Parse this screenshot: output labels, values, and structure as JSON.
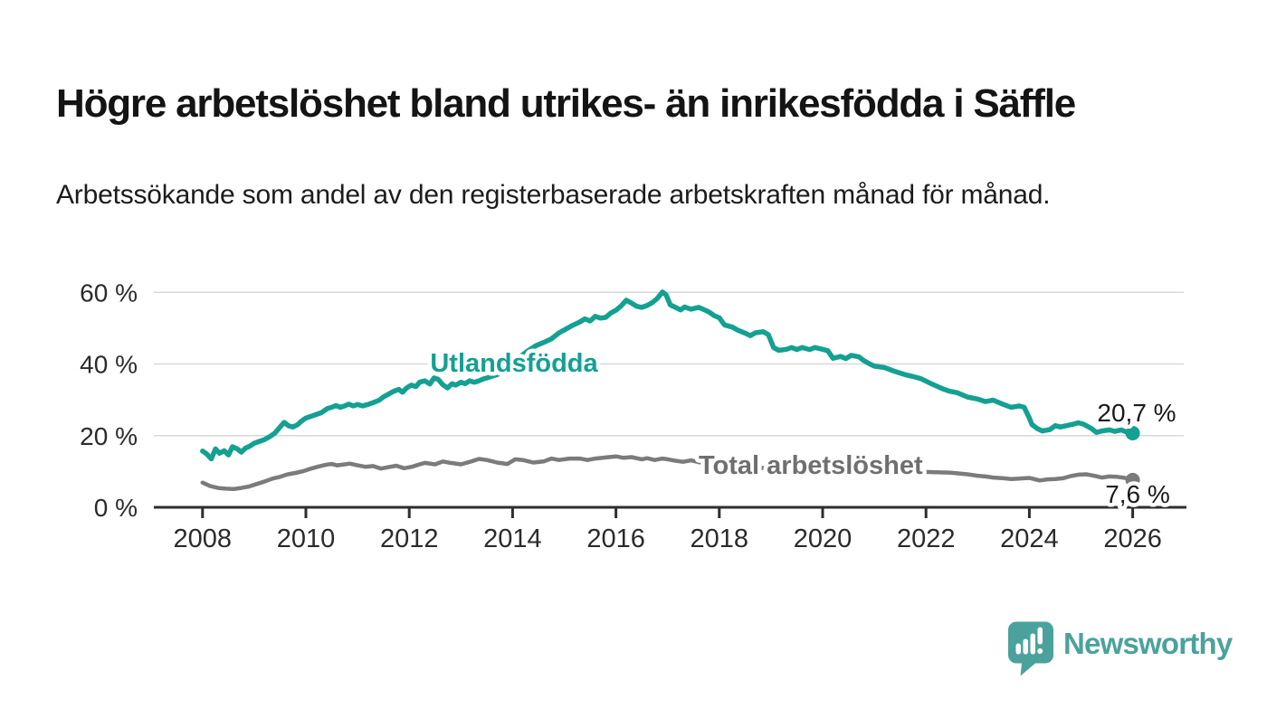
{
  "header": {
    "title": "Högre arbetslöshet bland utrikes- än inrikesfödda i Säffle",
    "subtitle": "Arbetssökande som andel av den registerbaserade arbetskraften månad för månad."
  },
  "footer": {
    "brand": "Newsworthy",
    "logo_icon": "newsworthy-speech-bubble-bar-chart-icon",
    "brand_color": "#4ba29d"
  },
  "chart_data": {
    "type": "line",
    "title": "Högre arbetslöshet bland utrikes- än inrikesfödda i Säffle",
    "subtitle": "Arbetssökande som andel av den registerbaserade arbetskraften månad för månad.",
    "grid": "horizontal",
    "legend": "inline-labels",
    "colors": {
      "grid": "#d8d8d8",
      "axis": "#2e2e2e",
      "tick_label": "#2b2b2b",
      "value_label": "#1a1a1a"
    },
    "x_axis": {
      "tick_years": [
        2008,
        2010,
        2012,
        2014,
        2016,
        2018,
        2020,
        2022,
        2024,
        2026
      ],
      "tick_labels": [
        "2008",
        "2010",
        "2012",
        "2014",
        "2016",
        "2018",
        "2020",
        "2022",
        "2024",
        "2026"
      ],
      "range": [
        2007.9,
        2027.0
      ]
    },
    "y_axis": {
      "tick_values": [
        0,
        20,
        40,
        60
      ],
      "tick_labels": [
        "0 %",
        "20 %",
        "40 %",
        "60 %"
      ],
      "range": [
        0,
        63
      ],
      "unit": "%"
    },
    "series": [
      {
        "name": "Utlandsfödda",
        "color": "#14a092",
        "label_color": "#14a092",
        "end_label": "20,7 %",
        "end_value": 20.7,
        "points": [
          [
            2008.0,
            15.7
          ],
          [
            2008.08,
            14.9
          ],
          [
            2008.17,
            13.5
          ],
          [
            2008.25,
            16.3
          ],
          [
            2008.33,
            15.1
          ],
          [
            2008.42,
            15.8
          ],
          [
            2008.5,
            14.6
          ],
          [
            2008.58,
            16.9
          ],
          [
            2008.67,
            16.3
          ],
          [
            2008.75,
            15.4
          ],
          [
            2008.83,
            16.5
          ],
          [
            2008.92,
            17.1
          ],
          [
            2009.0,
            17.9
          ],
          [
            2009.1,
            18.4
          ],
          [
            2009.2,
            18.9
          ],
          [
            2009.3,
            19.7
          ],
          [
            2009.4,
            20.7
          ],
          [
            2009.5,
            22.4
          ],
          [
            2009.58,
            23.7
          ],
          [
            2009.67,
            22.7
          ],
          [
            2009.75,
            22.4
          ],
          [
            2009.83,
            23.0
          ],
          [
            2009.92,
            24.1
          ],
          [
            2010.0,
            24.9
          ],
          [
            2010.1,
            25.4
          ],
          [
            2010.2,
            25.9
          ],
          [
            2010.3,
            26.4
          ],
          [
            2010.42,
            27.6
          ],
          [
            2010.5,
            27.9
          ],
          [
            2010.58,
            28.4
          ],
          [
            2010.67,
            27.9
          ],
          [
            2010.75,
            28.3
          ],
          [
            2010.83,
            28.8
          ],
          [
            2010.92,
            28.3
          ],
          [
            2011.0,
            28.7
          ],
          [
            2011.1,
            28.3
          ],
          [
            2011.2,
            28.7
          ],
          [
            2011.3,
            29.2
          ],
          [
            2011.42,
            29.9
          ],
          [
            2011.5,
            30.8
          ],
          [
            2011.6,
            31.6
          ],
          [
            2011.7,
            32.4
          ],
          [
            2011.8,
            32.9
          ],
          [
            2011.87,
            32.1
          ],
          [
            2011.95,
            33.3
          ],
          [
            2012.04,
            34.1
          ],
          [
            2012.13,
            33.7
          ],
          [
            2012.2,
            34.9
          ],
          [
            2012.3,
            35.3
          ],
          [
            2012.4,
            34.4
          ],
          [
            2012.48,
            36.1
          ],
          [
            2012.56,
            35.7
          ],
          [
            2012.65,
            34.2
          ],
          [
            2012.74,
            33.3
          ],
          [
            2012.83,
            34.5
          ],
          [
            2012.9,
            34.1
          ],
          [
            2013.0,
            34.9
          ],
          [
            2013.08,
            34.5
          ],
          [
            2013.17,
            35.3
          ],
          [
            2013.26,
            34.9
          ],
          [
            2013.35,
            35.3
          ],
          [
            2013.43,
            35.8
          ],
          [
            2013.52,
            36.2
          ],
          [
            2013.6,
            36.6
          ],
          [
            2013.7,
            37.0
          ],
          [
            2013.8,
            37.9
          ],
          [
            2013.9,
            39.1
          ],
          [
            2014.0,
            40.4
          ],
          [
            2014.15,
            42.1
          ],
          [
            2014.3,
            43.7
          ],
          [
            2014.45,
            45.1
          ],
          [
            2014.6,
            46.0
          ],
          [
            2014.75,
            47.0
          ],
          [
            2014.9,
            48.7
          ],
          [
            2015.0,
            49.5
          ],
          [
            2015.15,
            50.7
          ],
          [
            2015.3,
            51.7
          ],
          [
            2015.4,
            52.6
          ],
          [
            2015.5,
            52.0
          ],
          [
            2015.6,
            53.3
          ],
          [
            2015.7,
            52.8
          ],
          [
            2015.8,
            53.0
          ],
          [
            2015.9,
            54.2
          ],
          [
            2016.0,
            55.0
          ],
          [
            2016.1,
            56.2
          ],
          [
            2016.2,
            57.8
          ],
          [
            2016.3,
            57.0
          ],
          [
            2016.4,
            56.1
          ],
          [
            2016.5,
            55.8
          ],
          [
            2016.6,
            56.3
          ],
          [
            2016.7,
            57.1
          ],
          [
            2016.8,
            58.3
          ],
          [
            2016.9,
            60.1
          ],
          [
            2016.97,
            59.3
          ],
          [
            2017.05,
            56.5
          ],
          [
            2017.15,
            55.8
          ],
          [
            2017.25,
            55.1
          ],
          [
            2017.33,
            55.9
          ],
          [
            2017.45,
            55.3
          ],
          [
            2017.6,
            55.8
          ],
          [
            2017.7,
            55.2
          ],
          [
            2017.8,
            54.5
          ],
          [
            2017.9,
            53.5
          ],
          [
            2018.0,
            52.9
          ],
          [
            2018.1,
            50.9
          ],
          [
            2018.25,
            50.3
          ],
          [
            2018.35,
            49.5
          ],
          [
            2018.5,
            48.6
          ],
          [
            2018.6,
            47.9
          ],
          [
            2018.7,
            48.7
          ],
          [
            2018.85,
            49.0
          ],
          [
            2018.95,
            48.2
          ],
          [
            2019.05,
            44.6
          ],
          [
            2019.15,
            43.8
          ],
          [
            2019.3,
            44.1
          ],
          [
            2019.4,
            44.6
          ],
          [
            2019.5,
            44.0
          ],
          [
            2019.6,
            44.6
          ],
          [
            2019.75,
            44.0
          ],
          [
            2019.85,
            44.6
          ],
          [
            2020.0,
            44.1
          ],
          [
            2020.1,
            43.7
          ],
          [
            2020.2,
            41.6
          ],
          [
            2020.35,
            42.1
          ],
          [
            2020.45,
            41.5
          ],
          [
            2020.55,
            42.4
          ],
          [
            2020.7,
            42.0
          ],
          [
            2020.8,
            40.9
          ],
          [
            2020.9,
            40.1
          ],
          [
            2021.0,
            39.4
          ],
          [
            2021.2,
            39.0
          ],
          [
            2021.4,
            37.9
          ],
          [
            2021.6,
            37.0
          ],
          [
            2021.75,
            36.5
          ],
          [
            2021.9,
            35.9
          ],
          [
            2022.1,
            34.5
          ],
          [
            2022.3,
            33.2
          ],
          [
            2022.45,
            32.4
          ],
          [
            2022.6,
            32.0
          ],
          [
            2022.8,
            30.8
          ],
          [
            2023.0,
            30.2
          ],
          [
            2023.15,
            29.5
          ],
          [
            2023.3,
            29.9
          ],
          [
            2023.5,
            28.7
          ],
          [
            2023.65,
            27.9
          ],
          [
            2023.8,
            28.3
          ],
          [
            2023.9,
            27.9
          ],
          [
            2024.0,
            24.9
          ],
          [
            2024.05,
            23.1
          ],
          [
            2024.15,
            22.0
          ],
          [
            2024.25,
            21.3
          ],
          [
            2024.4,
            21.7
          ],
          [
            2024.5,
            22.8
          ],
          [
            2024.6,
            22.4
          ],
          [
            2024.72,
            22.8
          ],
          [
            2024.85,
            23.2
          ],
          [
            2024.95,
            23.6
          ],
          [
            2025.05,
            23.2
          ],
          [
            2025.2,
            22.0
          ],
          [
            2025.3,
            20.9
          ],
          [
            2025.4,
            21.3
          ],
          [
            2025.55,
            21.6
          ],
          [
            2025.65,
            21.2
          ],
          [
            2025.78,
            21.6
          ],
          [
            2025.9,
            20.9
          ],
          [
            2026.0,
            20.7
          ]
        ]
      },
      {
        "name": "Total arbetslöshet",
        "color": "#7b7b7b",
        "label_color": "#6f6f6f",
        "end_label": "7,6 %",
        "end_value": 7.6,
        "points": [
          [
            2008.0,
            6.9
          ],
          [
            2008.15,
            5.9
          ],
          [
            2008.3,
            5.4
          ],
          [
            2008.45,
            5.2
          ],
          [
            2008.6,
            5.1
          ],
          [
            2008.75,
            5.4
          ],
          [
            2008.9,
            5.8
          ],
          [
            2009.05,
            6.5
          ],
          [
            2009.2,
            7.2
          ],
          [
            2009.35,
            8.0
          ],
          [
            2009.5,
            8.5
          ],
          [
            2009.65,
            9.2
          ],
          [
            2009.8,
            9.6
          ],
          [
            2009.95,
            10.1
          ],
          [
            2010.1,
            10.8
          ],
          [
            2010.25,
            11.4
          ],
          [
            2010.4,
            11.9
          ],
          [
            2010.5,
            12.1
          ],
          [
            2010.6,
            11.7
          ],
          [
            2010.75,
            12.0
          ],
          [
            2010.85,
            12.2
          ],
          [
            2011.0,
            11.7
          ],
          [
            2011.15,
            11.3
          ],
          [
            2011.3,
            11.5
          ],
          [
            2011.45,
            10.8
          ],
          [
            2011.6,
            11.2
          ],
          [
            2011.75,
            11.6
          ],
          [
            2011.9,
            10.9
          ],
          [
            2012.05,
            11.3
          ],
          [
            2012.2,
            12.0
          ],
          [
            2012.3,
            12.4
          ],
          [
            2012.5,
            12.0
          ],
          [
            2012.65,
            12.8
          ],
          [
            2012.8,
            12.4
          ],
          [
            2013.0,
            12.0
          ],
          [
            2013.2,
            12.8
          ],
          [
            2013.35,
            13.5
          ],
          [
            2013.5,
            13.2
          ],
          [
            2013.7,
            12.5
          ],
          [
            2013.9,
            12.1
          ],
          [
            2014.05,
            13.4
          ],
          [
            2014.2,
            13.2
          ],
          [
            2014.4,
            12.5
          ],
          [
            2014.6,
            12.8
          ],
          [
            2014.75,
            13.6
          ],
          [
            2014.9,
            13.2
          ],
          [
            2015.1,
            13.6
          ],
          [
            2015.3,
            13.6
          ],
          [
            2015.45,
            13.2
          ],
          [
            2015.6,
            13.6
          ],
          [
            2015.8,
            13.9
          ],
          [
            2016.0,
            14.2
          ],
          [
            2016.15,
            13.8
          ],
          [
            2016.3,
            14.0
          ],
          [
            2016.5,
            13.4
          ],
          [
            2016.6,
            13.7
          ],
          [
            2016.75,
            13.2
          ],
          [
            2016.9,
            13.6
          ],
          [
            2017.0,
            13.4
          ],
          [
            2017.15,
            13.0
          ],
          [
            2017.3,
            12.7
          ],
          [
            2017.45,
            13.1
          ],
          [
            2017.6,
            12.6
          ],
          [
            2017.8,
            12.3
          ],
          [
            2018.0,
            12.0
          ],
          [
            2018.3,
            11.6
          ],
          [
            2018.6,
            11.2
          ],
          [
            2018.9,
            10.9
          ],
          [
            2019.2,
            10.7
          ],
          [
            2019.5,
            10.5
          ],
          [
            2019.8,
            10.4
          ],
          [
            2020.1,
            10.8
          ],
          [
            2020.4,
            11.0
          ],
          [
            2020.7,
            10.8
          ],
          [
            2021.0,
            10.5
          ],
          [
            2021.3,
            10.2
          ],
          [
            2021.6,
            10.0
          ],
          [
            2021.9,
            9.9
          ],
          [
            2022.2,
            9.8
          ],
          [
            2022.45,
            9.7
          ],
          [
            2022.6,
            9.5
          ],
          [
            2022.8,
            9.2
          ],
          [
            2023.0,
            8.8
          ],
          [
            2023.15,
            8.6
          ],
          [
            2023.3,
            8.3
          ],
          [
            2023.5,
            8.1
          ],
          [
            2023.65,
            7.9
          ],
          [
            2023.8,
            8.0
          ],
          [
            2024.0,
            8.2
          ],
          [
            2024.2,
            7.5
          ],
          [
            2024.35,
            7.8
          ],
          [
            2024.5,
            7.9
          ],
          [
            2024.65,
            8.1
          ],
          [
            2024.8,
            8.7
          ],
          [
            2024.95,
            9.1
          ],
          [
            2025.1,
            9.2
          ],
          [
            2025.25,
            8.8
          ],
          [
            2025.4,
            8.3
          ],
          [
            2025.55,
            8.6
          ],
          [
            2025.7,
            8.5
          ],
          [
            2025.85,
            8.2
          ],
          [
            2026.0,
            7.6
          ]
        ]
      }
    ]
  }
}
